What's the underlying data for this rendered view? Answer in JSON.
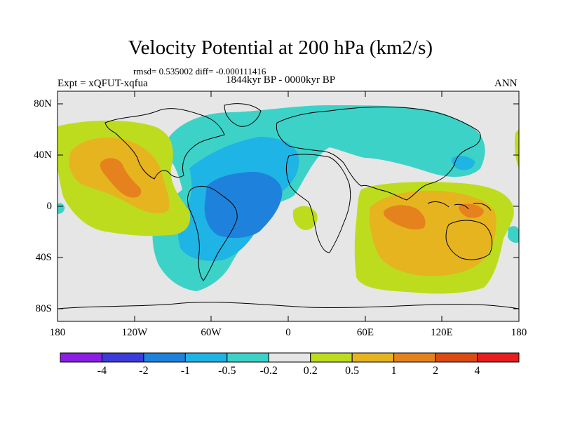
{
  "figure": {
    "title": "Velocity Potential at 200 hPa (km2/s)",
    "stats": "rmsd= 0.535002 diff= -0.000111416",
    "period": "1844kyr BP - 0000kyr BP",
    "experiment": "Expt = xQFUT-xqfua",
    "season": "ANN"
  },
  "axes": {
    "y_labels": [
      "80N",
      "40N",
      "0",
      "40S",
      "80S"
    ],
    "x_labels": [
      "180",
      "120W",
      "60W",
      "0",
      "60E",
      "120E",
      "180"
    ]
  },
  "colorbar": {
    "labels": [
      "-4",
      "-2",
      "-1",
      "-0.5",
      "-0.2",
      "0.2",
      "0.5",
      "1",
      "2",
      "4"
    ],
    "colors": [
      "#8c1ee6",
      "#3c3cdc",
      "#1e82dc",
      "#1eb4e6",
      "#3cd2c8",
      "#e6e6e6",
      "#bedc1e",
      "#e6b41e",
      "#e6821e",
      "#dc4b14",
      "#e61e1e"
    ]
  },
  "map_fields": {
    "background": "#e6e6e6",
    "coast_color": "#000000"
  }
}
